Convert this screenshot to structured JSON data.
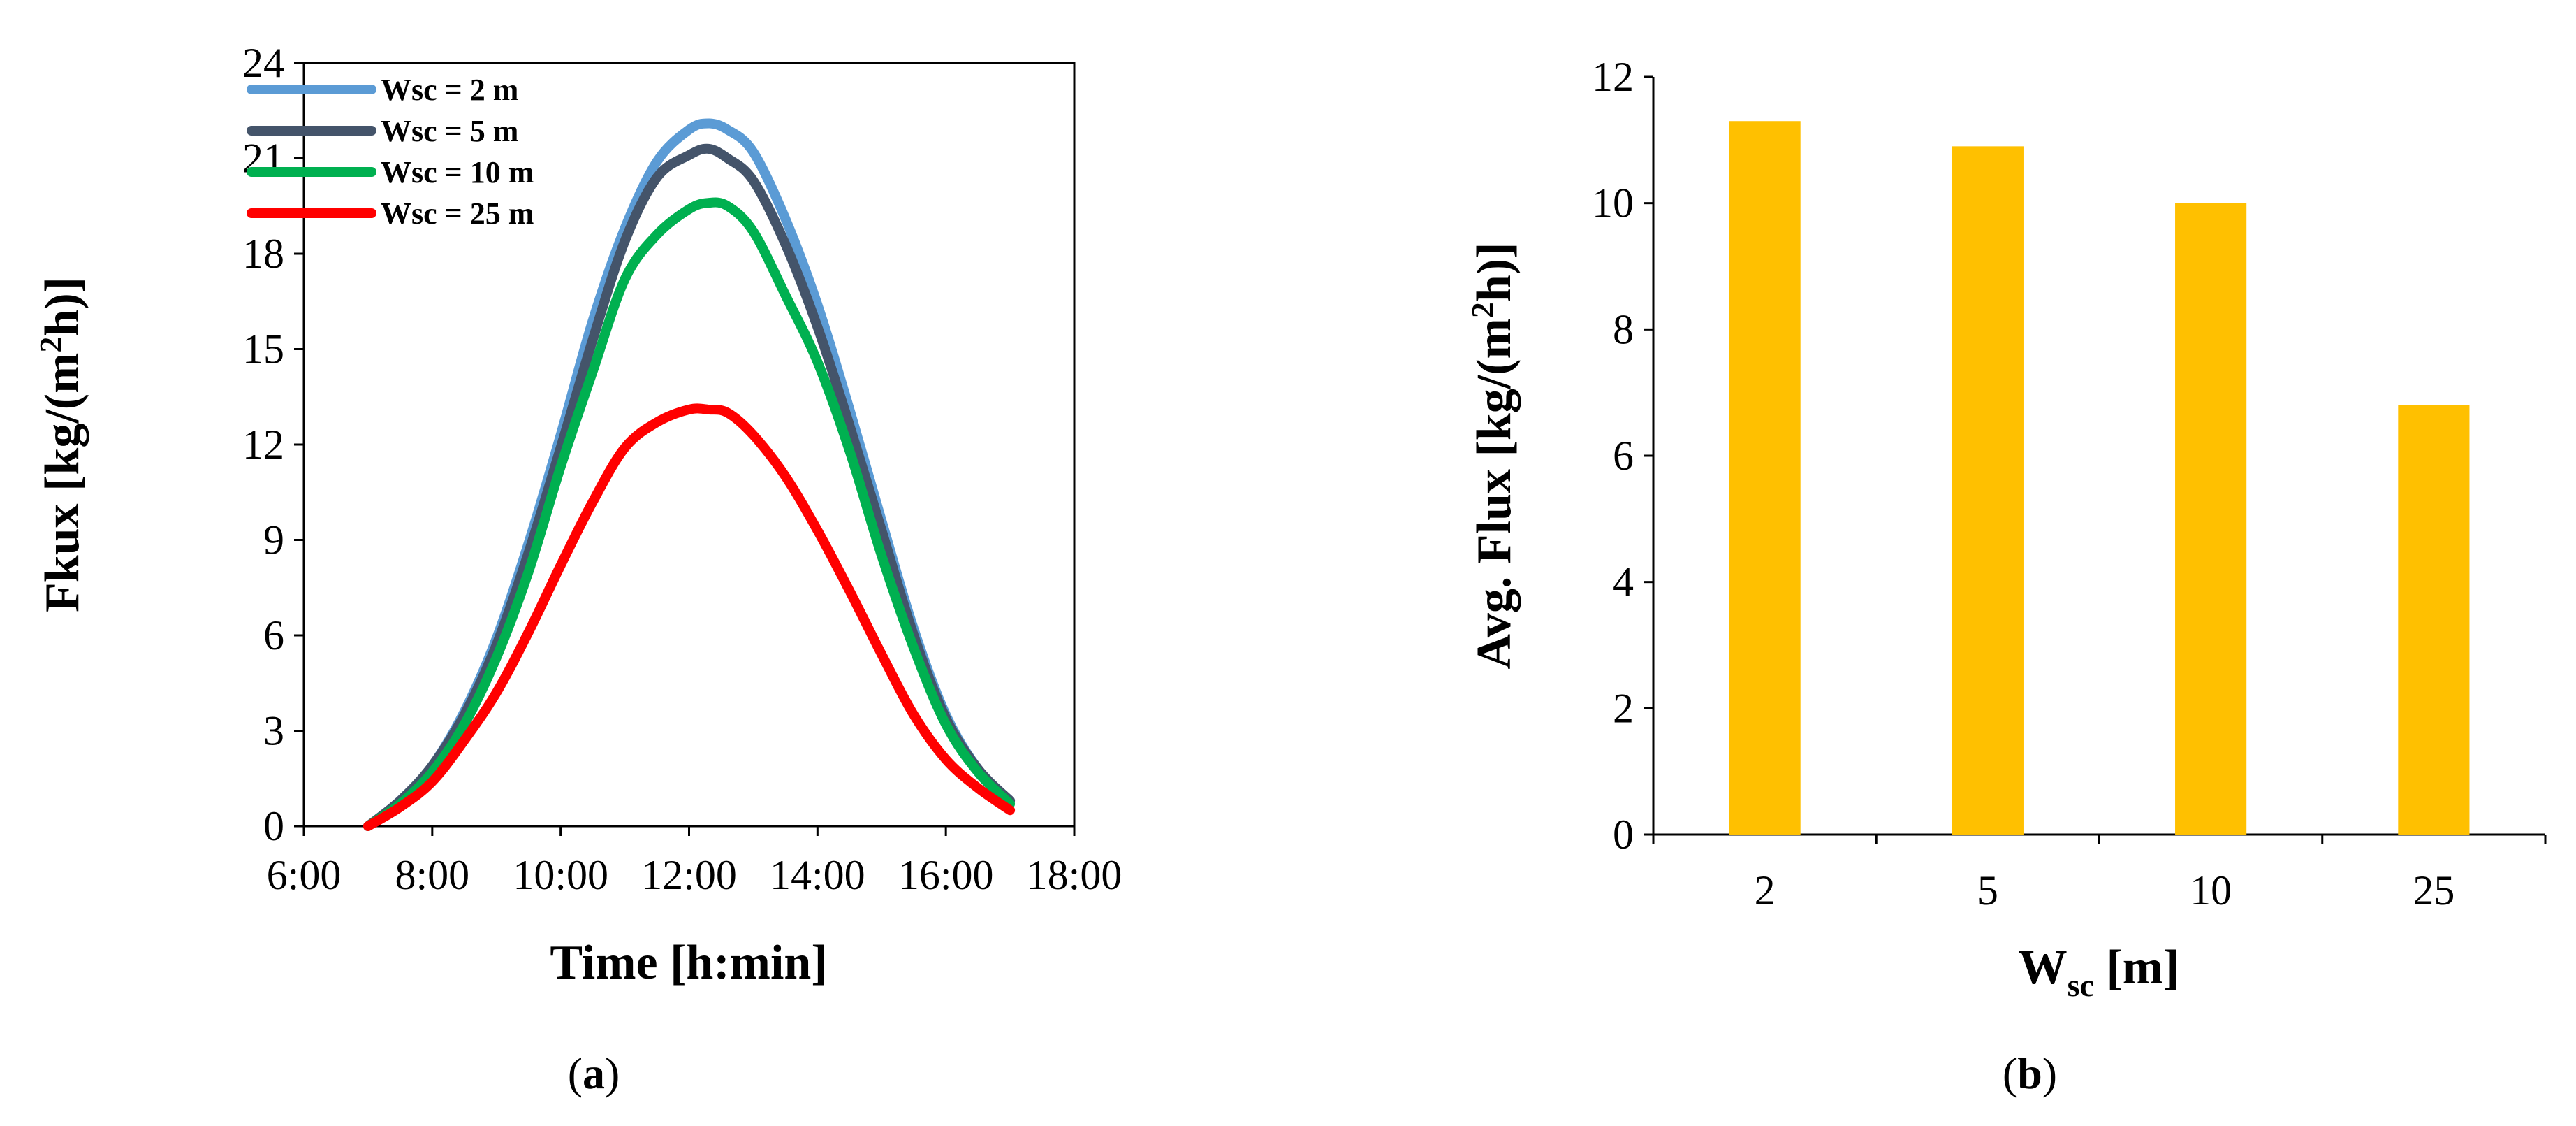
{
  "chart_data": [
    {
      "type": "line",
      "panel_label": "a",
      "title": "",
      "xlabel": "Time [h:min]",
      "ylabel": "Fkux [kg/(m2h)]",
      "ylabel_parts": {
        "pre": "Fkux [kg/(m",
        "sup": "2",
        "post": "h)]"
      },
      "x_tick_labels": [
        "6:00",
        "8:00",
        "10:00",
        "12:00",
        "14:00",
        "16:00",
        "18:00"
      ],
      "xlim": [
        6,
        18
      ],
      "ylim": [
        0,
        24
      ],
      "y_ticks": [
        0,
        3,
        6,
        9,
        12,
        15,
        18,
        21,
        24
      ],
      "grid": false,
      "legend_position": "top-left",
      "series": [
        {
          "name": "Wsc = 2 m",
          "color": "#5b9bd5",
          "points": [
            [
              7,
              0
            ],
            [
              7.5,
              0.8
            ],
            [
              8,
              1.9
            ],
            [
              8.5,
              3.6
            ],
            [
              9,
              5.9
            ],
            [
              9.5,
              8.9
            ],
            [
              10,
              12.3
            ],
            [
              10.5,
              15.9
            ],
            [
              11,
              18.8
            ],
            [
              11.5,
              20.9
            ],
            [
              12,
              21.9
            ],
            [
              12.3,
              22.1
            ],
            [
              12.6,
              21.9
            ],
            [
              13,
              21.2
            ],
            [
              13.5,
              19.1
            ],
            [
              14,
              16.4
            ],
            [
              14.5,
              13.1
            ],
            [
              15,
              9.6
            ],
            [
              15.5,
              6.2
            ],
            [
              16,
              3.5
            ],
            [
              16.5,
              1.8
            ],
            [
              17,
              0.8
            ]
          ]
        },
        {
          "name": "Wsc = 5 m",
          "color": "#44546a",
          "points": [
            [
              7,
              0
            ],
            [
              7.5,
              0.8
            ],
            [
              8,
              1.9
            ],
            [
              8.5,
              3.5
            ],
            [
              9,
              5.7
            ],
            [
              9.5,
              8.6
            ],
            [
              10,
              11.9
            ],
            [
              10.5,
              15.3
            ],
            [
              11,
              18.4
            ],
            [
              11.5,
              20.4
            ],
            [
              12,
              21.1
            ],
            [
              12.3,
              21.3
            ],
            [
              12.6,
              21.0
            ],
            [
              13,
              20.3
            ],
            [
              13.5,
              18.3
            ],
            [
              14,
              15.7
            ],
            [
              14.5,
              12.6
            ],
            [
              15,
              9.3
            ],
            [
              15.5,
              6.0
            ],
            [
              16,
              3.4
            ],
            [
              16.5,
              1.8
            ],
            [
              17,
              0.8
            ]
          ]
        },
        {
          "name": "Wsc = 10 m",
          "color": "#00b050",
          "points": [
            [
              7,
              0
            ],
            [
              7.5,
              0.7
            ],
            [
              8,
              1.7
            ],
            [
              8.5,
              3.2
            ],
            [
              9,
              5.3
            ],
            [
              9.5,
              8.0
            ],
            [
              10,
              11.3
            ],
            [
              10.5,
              14.3
            ],
            [
              11,
              17.2
            ],
            [
              11.5,
              18.6
            ],
            [
              12,
              19.4
            ],
            [
              12.3,
              19.6
            ],
            [
              12.6,
              19.5
            ],
            [
              13,
              18.7
            ],
            [
              13.5,
              16.7
            ],
            [
              14,
              14.6
            ],
            [
              14.5,
              11.8
            ],
            [
              15,
              8.5
            ],
            [
              15.5,
              5.6
            ],
            [
              16,
              3.2
            ],
            [
              16.5,
              1.7
            ],
            [
              17,
              0.7
            ]
          ]
        },
        {
          "name": "Wsc = 25 m",
          "color": "#ff0000",
          "points": [
            [
              7,
              0
            ],
            [
              7.5,
              0.6
            ],
            [
              8,
              1.4
            ],
            [
              8.5,
              2.7
            ],
            [
              9,
              4.2
            ],
            [
              9.5,
              6.1
            ],
            [
              10,
              8.2
            ],
            [
              10.5,
              10.2
            ],
            [
              11,
              11.9
            ],
            [
              11.5,
              12.7
            ],
            [
              12,
              13.1
            ],
            [
              12.3,
              13.1
            ],
            [
              12.6,
              13.0
            ],
            [
              13,
              12.3
            ],
            [
              13.5,
              11.0
            ],
            [
              14,
              9.3
            ],
            [
              14.5,
              7.4
            ],
            [
              15,
              5.4
            ],
            [
              15.5,
              3.5
            ],
            [
              16,
              2.1
            ],
            [
              16.5,
              1.2
            ],
            [
              17,
              0.5
            ]
          ]
        }
      ]
    },
    {
      "type": "bar",
      "panel_label": "b",
      "title": "",
      "xlabel": "Wsc [m]",
      "xlabel_parts": {
        "main": "W",
        "sub": "sc",
        "post": " [m]"
      },
      "ylabel": "Avg. Flux [kg/(m2h)]",
      "ylabel_parts": {
        "pre": "Avg. Flux [kg/(m",
        "sup": "2",
        "post": "h)]"
      },
      "categories": [
        "2",
        "5",
        "10",
        "25"
      ],
      "values": [
        11.3,
        10.9,
        10.0,
        6.8
      ],
      "color": "#ffc000",
      "ylim": [
        0,
        12
      ],
      "y_ticks": [
        0,
        2,
        4,
        6,
        8,
        10,
        12
      ],
      "grid": false
    }
  ]
}
